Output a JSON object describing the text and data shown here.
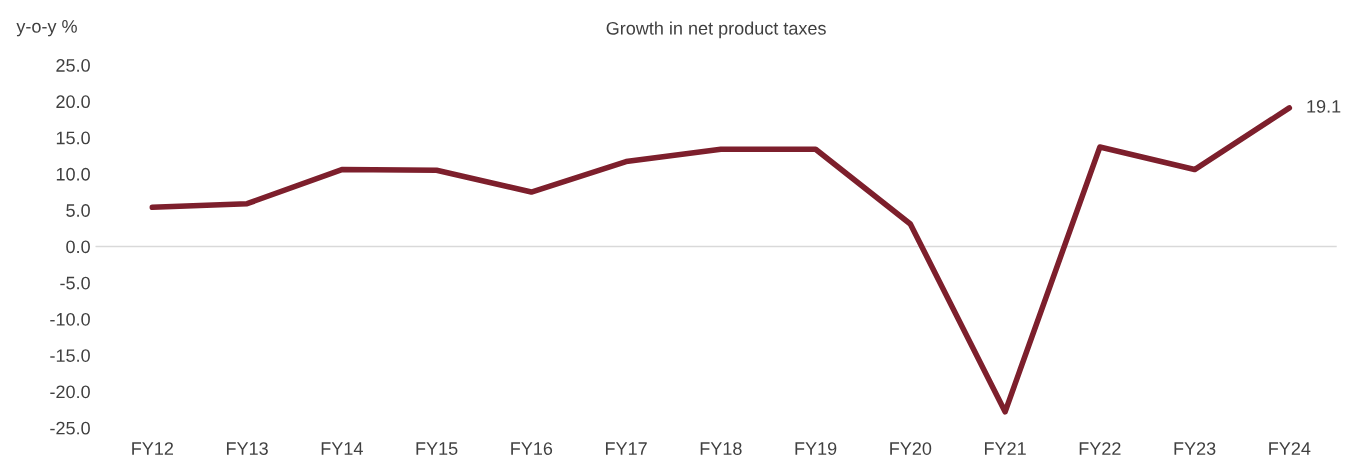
{
  "chart_data": {
    "type": "line",
    "title": "Growth in net product taxes",
    "ylabel": "y-o-y %",
    "categories": [
      "FY12",
      "FY13",
      "FY14",
      "FY15",
      "FY16",
      "FY17",
      "FY18",
      "FY19",
      "FY20",
      "FY21",
      "FY22",
      "FY23",
      "FY24"
    ],
    "series": [
      {
        "color": "#7d1f2c",
        "values": [
          5.4,
          5.9,
          10.6,
          10.5,
          7.5,
          11.7,
          13.4,
          13.4,
          3.1,
          -22.8,
          13.7,
          10.6,
          19.1
        ],
        "value_labels": [
          null,
          null,
          null,
          null,
          null,
          null,
          null,
          null,
          null,
          null,
          null,
          null,
          "19.1"
        ]
      }
    ],
    "ylim": [
      -25,
      25
    ],
    "yticks": [
      {
        "value": -25,
        "label": "-25.0"
      },
      {
        "value": -20,
        "label": "-20.0"
      },
      {
        "value": -15,
        "label": "-15.0"
      },
      {
        "value": -10,
        "label": "-10.0"
      },
      {
        "value": -5,
        "label": "-5.0"
      },
      {
        "value": 0,
        "label": "0.0"
      },
      {
        "value": 5,
        "label": "5.0"
      },
      {
        "value": 10,
        "label": "10.0"
      },
      {
        "value": 15,
        "label": "15.0"
      },
      {
        "value": 20,
        "label": "20.0"
      },
      {
        "value": 25,
        "label": "25.0"
      }
    ],
    "ref_lines": [
      {
        "axis": "y",
        "value": 0,
        "color": "#d9d9d9"
      }
    ],
    "grid": false,
    "legend": false,
    "marker": "none",
    "line_style": "solid"
  }
}
